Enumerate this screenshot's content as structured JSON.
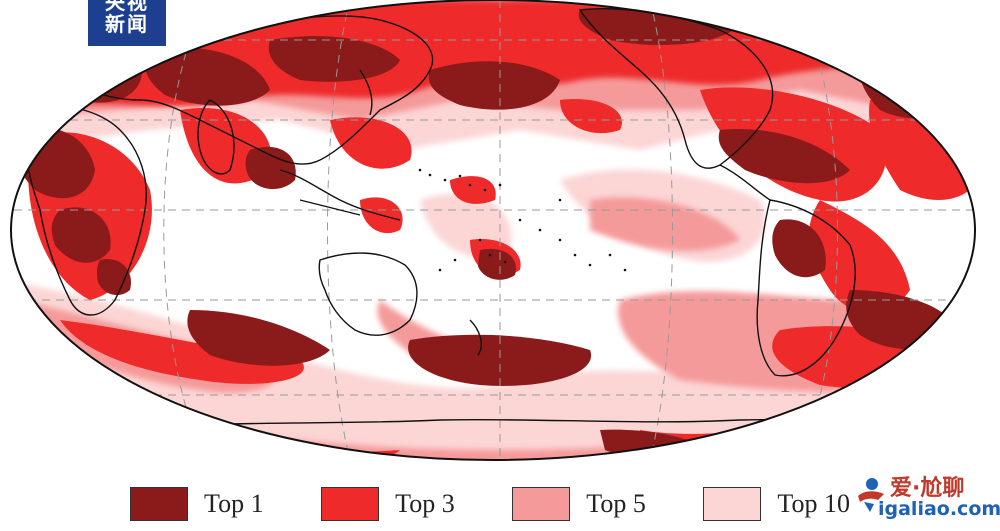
{
  "badge": {
    "line1": "央视",
    "line2": "新闻"
  },
  "legend": [
    {
      "label": "Top 1",
      "color": "#8b1a1a"
    },
    {
      "label": "Top 3",
      "color": "#ee2a2a"
    },
    {
      "label": "Top 5",
      "color": "#f59a9a"
    },
    {
      "label": "Top 10",
      "color": "#fcd5d5"
    }
  ],
  "watermark": {
    "line1": "爱·尬聊",
    "line2": "igaliao.com"
  },
  "colors": {
    "ocean_white": "#ffffff",
    "coast": "#111111",
    "grid": "#999999"
  }
}
